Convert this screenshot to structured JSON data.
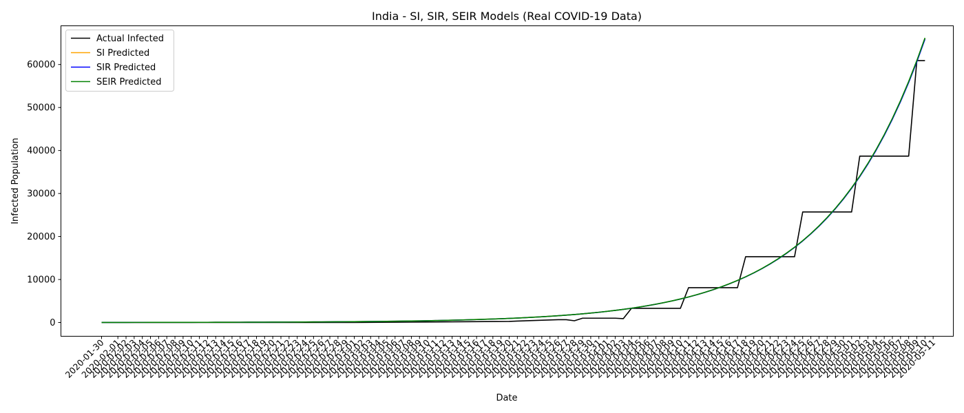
{
  "chart_data": {
    "type": "line",
    "title": "India - SI, SIR, SEIR Models (Real COVID-19 Data)",
    "xlabel": "Date",
    "ylabel": "Infected Population",
    "x_start": "2020-01-30",
    "x_end": "2020-05-11",
    "ylim": [
      -3200,
      69000
    ],
    "yticks": [
      0,
      10000,
      20000,
      30000,
      40000,
      50000,
      60000
    ],
    "grid": false,
    "legend_position": "top-left",
    "series": [
      {
        "name": "Actual Infected",
        "color": "#000000",
        "points": [
          [
            "2020-01-30",
            1
          ],
          [
            "2020-02-29",
            3
          ],
          [
            "2020-03-01",
            3
          ],
          [
            "2020-03-20",
            250
          ],
          [
            "2020-03-21",
            330
          ],
          [
            "2020-03-26",
            650
          ],
          [
            "2020-03-27",
            650
          ],
          [
            "2020-03-28",
            400
          ],
          [
            "2020-03-29",
            1000
          ],
          [
            "2020-04-02",
            1000
          ],
          [
            "2020-04-03",
            900
          ],
          [
            "2020-04-04",
            3300
          ],
          [
            "2020-04-10",
            3300
          ],
          [
            "2020-04-11",
            8100
          ],
          [
            "2020-04-17",
            8100
          ],
          [
            "2020-04-18",
            15300
          ],
          [
            "2020-04-24",
            15300
          ],
          [
            "2020-04-25",
            25700
          ],
          [
            "2020-05-01",
            25700
          ],
          [
            "2020-05-02",
            38700
          ],
          [
            "2020-05-08",
            38700
          ],
          [
            "2020-05-09",
            60900
          ],
          [
            "2020-05-10",
            60900
          ]
        ]
      },
      {
        "name": "SI Predicted",
        "color": "#ffa500",
        "model": {
          "form": "exponential",
          "value_2020-01-30": 15.0,
          "value_2020-05-10": 66000
        }
      },
      {
        "name": "SIR Predicted",
        "color": "#0000ff",
        "model": {
          "form": "exponential",
          "value_2020-01-30": 15.0,
          "value_2020-05-10": 65900
        }
      },
      {
        "name": "SEIR Predicted",
        "color": "#008000",
        "model": {
          "form": "exponential",
          "value_2020-01-30": 15.0,
          "value_2020-05-10": 66200
        }
      }
    ],
    "xtick_labels": [
      "2020-01-30",
      "2020-02-01",
      "2020-02-02",
      "2020-02-03",
      "2020-02-04",
      "2020-02-05",
      "2020-02-06",
      "2020-02-07",
      "2020-02-08",
      "2020-02-09",
      "2020-02-10",
      "2020-02-11",
      "2020-02-12",
      "2020-02-13",
      "2020-02-14",
      "2020-02-15",
      "2020-02-16",
      "2020-02-17",
      "2020-02-18",
      "2020-02-19",
      "2020-02-20",
      "2020-02-21",
      "2020-02-22",
      "2020-02-23",
      "2020-02-24",
      "2020-02-25",
      "2020-02-26",
      "2020-02-27",
      "2020-02-28",
      "2020-02-29",
      "2020-03-01",
      "2020-03-02",
      "2020-03-03",
      "2020-03-04",
      "2020-03-05",
      "2020-03-06",
      "2020-03-07",
      "2020-03-08",
      "2020-03-09",
      "2020-03-10",
      "2020-03-11",
      "2020-03-12",
      "2020-03-13",
      "2020-03-14",
      "2020-03-15",
      "2020-03-16",
      "2020-03-17",
      "2020-03-18",
      "2020-03-19",
      "2020-03-20",
      "2020-03-21",
      "2020-03-22",
      "2020-03-23",
      "2020-03-24",
      "2020-03-25",
      "2020-03-26",
      "2020-03-27",
      "2020-03-28",
      "2020-03-29",
      "2020-03-30",
      "2020-03-31",
      "2020-04-01",
      "2020-04-02",
      "2020-04-03",
      "2020-04-04",
      "2020-04-05",
      "2020-04-06",
      "2020-04-07",
      "2020-04-08",
      "2020-04-09",
      "2020-04-10",
      "2020-04-11",
      "2020-04-12",
      "2020-04-13",
      "2020-04-14",
      "2020-04-15",
      "2020-04-16",
      "2020-04-17",
      "2020-04-18",
      "2020-04-19",
      "2020-04-20",
      "2020-04-21",
      "2020-04-22",
      "2020-04-23",
      "2020-04-24",
      "2020-04-25",
      "2020-04-26",
      "2020-04-27",
      "2020-04-28",
      "2020-04-29",
      "2020-04-30",
      "2020-05-01",
      "2020-05-02",
      "2020-05-03",
      "2020-05-04",
      "2020-05-05",
      "2020-05-06",
      "2020-05-07",
      "2020-05-08",
      "2020-05-09",
      "2020-05-10",
      "2020-05-11"
    ]
  }
}
